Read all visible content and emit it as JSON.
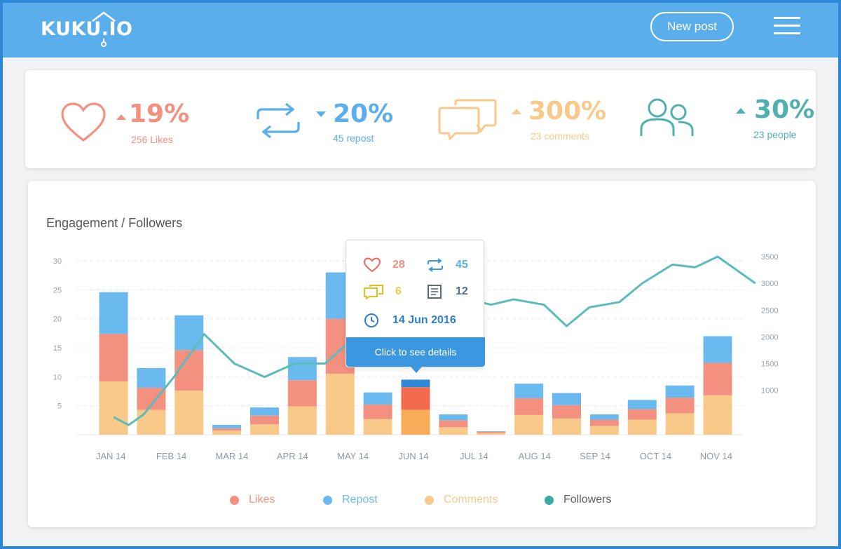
{
  "header": {
    "logo": "KUKU.IO",
    "new_post_label": "New post"
  },
  "stats": [
    {
      "icon": "heart-icon",
      "pct": "19%",
      "trend": "up",
      "sub": "256 Likes",
      "color": "#f3907f"
    },
    {
      "icon": "repost-icon",
      "pct": "20%",
      "trend": "down",
      "sub": "45 repost",
      "color": "#5aaeec"
    },
    {
      "icon": "comments-icon",
      "pct": "300%",
      "trend": "up",
      "sub": "23 comments",
      "color": "#f9c98a"
    },
    {
      "icon": "people-icon",
      "pct": "30%",
      "trend": "up",
      "sub": "23 people",
      "color": "#4fb0ad"
    }
  ],
  "chart": {
    "title": "Engagement / Followers"
  },
  "tooltip": {
    "likes": "28",
    "reposts": "45",
    "comments": "6",
    "posts": "12",
    "date": "14 Jun 2016",
    "button_label": "Click to see details"
  },
  "legend": [
    {
      "label": "Likes",
      "color": "#f3907f"
    },
    {
      "label": "Repost",
      "color": "#6bbaef"
    },
    {
      "label": "Comments",
      "color": "#f9c98a"
    },
    {
      "label": "Followers",
      "color": "#3aa9a4"
    }
  ],
  "chart_data": {
    "type": "bar",
    "categories": [
      "JAN 14",
      "FEB 14",
      "MAR 14",
      "APR 14",
      "MAY 14",
      "JUN 14",
      "JUL 14",
      "AUG 14",
      "SEP 14",
      "OCT 14",
      "NOV 14"
    ],
    "y_left_ticks": [
      "30",
      "25",
      "20",
      "15",
      "10",
      "5"
    ],
    "y_right_ticks": [
      "3500",
      "3000",
      "2500",
      "2000",
      "1500",
      "1000"
    ],
    "ylim": [
      0,
      30
    ],
    "y2lim": [
      300,
      3500
    ],
    "colors": {
      "comments": "#f9c98a",
      "likes": "#f3907f",
      "repost": "#6bbaef",
      "followers": "#5cbcbc",
      "hl_comments": "#f9ac5a",
      "hl_likes": "#f46a4e",
      "hl_repost": "#2e8ad6"
    },
    "bars": [
      {
        "x": 0.0,
        "comments": 9.2,
        "likes": 8.2,
        "repost": 7.2
      },
      {
        "x": 0.5,
        "comments": 4.3,
        "likes": 3.8,
        "repost": 3.4
      },
      {
        "x": 1.0,
        "comments": 7.6,
        "likes": 7.0,
        "repost": 6.0
      },
      {
        "x": 1.5,
        "comments": 0.7,
        "likes": 0.4,
        "repost": 0.6
      },
      {
        "x": 2.0,
        "comments": 1.8,
        "likes": 1.5,
        "repost": 1.4
      },
      {
        "x": 2.5,
        "comments": 4.9,
        "likes": 4.5,
        "repost": 4.0
      },
      {
        "x": 3.0,
        "comments": 10.5,
        "likes": 9.5,
        "repost": 8.0
      },
      {
        "x": 3.5,
        "comments": 2.7,
        "likes": 2.5,
        "repost": 2.1
      },
      {
        "x": 4.0,
        "comments": 4.3,
        "likes": 3.9,
        "repost": 1.3,
        "highlight": true
      },
      {
        "x": 4.5,
        "comments": 1.3,
        "likes": 1.2,
        "repost": 1.0
      },
      {
        "x": 5.0,
        "comments": 0.3,
        "likes": 0.2,
        "repost": 0.1
      },
      {
        "x": 5.5,
        "comments": 3.4,
        "likes": 2.9,
        "repost": 2.5
      },
      {
        "x": 6.0,
        "comments": 2.8,
        "likes": 2.3,
        "repost": 2.1
      },
      {
        "x": 6.5,
        "comments": 1.5,
        "likes": 1.1,
        "repost": 0.9
      },
      {
        "x": 7.0,
        "comments": 2.6,
        "likes": 1.8,
        "repost": 1.6
      },
      {
        "x": 7.5,
        "comments": 3.7,
        "likes": 2.7,
        "repost": 2.1
      },
      {
        "x": 8.0,
        "comments": 6.8,
        "likes": 5.6,
        "repost": 4.6
      }
    ],
    "followers": [
      {
        "x": 0.0,
        "y": 500
      },
      {
        "x": 0.2,
        "y": 350
      },
      {
        "x": 0.4,
        "y": 550
      },
      {
        "x": 0.8,
        "y": 1250
      },
      {
        "x": 1.2,
        "y": 2050
      },
      {
        "x": 1.6,
        "y": 1500
      },
      {
        "x": 2.0,
        "y": 1250
      },
      {
        "x": 2.4,
        "y": 1500
      },
      {
        "x": 2.8,
        "y": 1500
      },
      {
        "x": 3.2,
        "y": 2000
      },
      {
        "x": 3.5,
        "y": 2450
      },
      {
        "x": 4.0,
        "y": 2350
      },
      {
        "x": 4.3,
        "y": 2650
      },
      {
        "x": 4.7,
        "y": 2700
      },
      {
        "x": 5.0,
        "y": 2600
      },
      {
        "x": 5.3,
        "y": 2700
      },
      {
        "x": 5.7,
        "y": 2600
      },
      {
        "x": 6.0,
        "y": 2200
      },
      {
        "x": 6.3,
        "y": 2550
      },
      {
        "x": 6.7,
        "y": 2650
      },
      {
        "x": 7.0,
        "y": 3000
      },
      {
        "x": 7.4,
        "y": 3350
      },
      {
        "x": 7.7,
        "y": 3300
      },
      {
        "x": 8.0,
        "y": 3500
      },
      {
        "x": 8.5,
        "y": 3000
      }
    ]
  }
}
